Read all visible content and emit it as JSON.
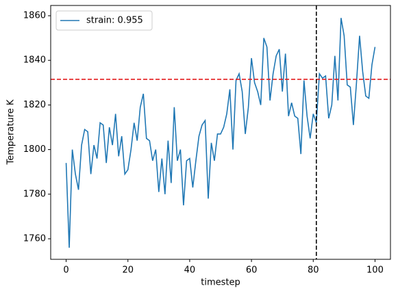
{
  "chart_data": {
    "type": "line",
    "xlabel": "timestep",
    "ylabel": "Temperature K",
    "x": [
      0,
      1,
      2,
      3,
      4,
      5,
      6,
      7,
      8,
      9,
      10,
      11,
      12,
      13,
      14,
      15,
      16,
      17,
      18,
      19,
      20,
      21,
      22,
      23,
      24,
      25,
      26,
      27,
      28,
      29,
      30,
      31,
      32,
      33,
      34,
      35,
      36,
      37,
      38,
      39,
      40,
      41,
      42,
      43,
      44,
      45,
      46,
      47,
      48,
      49,
      50,
      51,
      52,
      53,
      54,
      55,
      56,
      57,
      58,
      59,
      60,
      61,
      62,
      63,
      64,
      65,
      66,
      67,
      68,
      69,
      70,
      71,
      72,
      73,
      74,
      75,
      76,
      77,
      78,
      79,
      80,
      81,
      82,
      83,
      84,
      85,
      86,
      87,
      88,
      89,
      90,
      91,
      92,
      93,
      94,
      95,
      96,
      97,
      98,
      99,
      100
    ],
    "series": [
      {
        "name": "strain: 0.955",
        "color": "#1f77b4",
        "values": [
          1794,
          1756,
          1800,
          1789,
          1782,
          1802,
          1809,
          1808,
          1789,
          1802,
          1796,
          1812,
          1811,
          1794,
          1810,
          1802,
          1816,
          1797,
          1806,
          1789,
          1791,
          1800,
          1812,
          1804,
          1819,
          1825,
          1805,
          1804,
          1795,
          1800,
          1781,
          1796,
          1780,
          1804,
          1785,
          1819,
          1795,
          1800,
          1775,
          1795,
          1796,
          1783,
          1795,
          1806,
          1811,
          1813,
          1778,
          1803,
          1795,
          1807,
          1807,
          1810,
          1816,
          1827,
          1800,
          1831,
          1834,
          1826,
          1807,
          1819,
          1841,
          1830,
          1826,
          1820,
          1850,
          1846,
          1822,
          1834,
          1842,
          1845,
          1826,
          1843,
          1815,
          1821,
          1815,
          1814,
          1798,
          1831,
          1815,
          1805,
          1816,
          1812,
          1834,
          1832,
          1833,
          1814,
          1820,
          1842,
          1822,
          1859,
          1851,
          1829,
          1828,
          1811,
          1830,
          1851,
          1835,
          1824,
          1823,
          1838,
          1846
        ]
      }
    ],
    "reference_lines": [
      {
        "axis": "y",
        "value": 1831.5,
        "color": "#e41a1c"
      },
      {
        "axis": "x",
        "value": 81,
        "color": "#000000"
      }
    ],
    "xlim": [
      -5,
      105
    ],
    "ylim": [
      1750.8,
      1864.6
    ],
    "xticks": [
      0,
      20,
      40,
      60,
      80,
      100
    ],
    "yticks": [
      1760,
      1780,
      1800,
      1820,
      1840,
      1860
    ],
    "legend": "upper left"
  }
}
